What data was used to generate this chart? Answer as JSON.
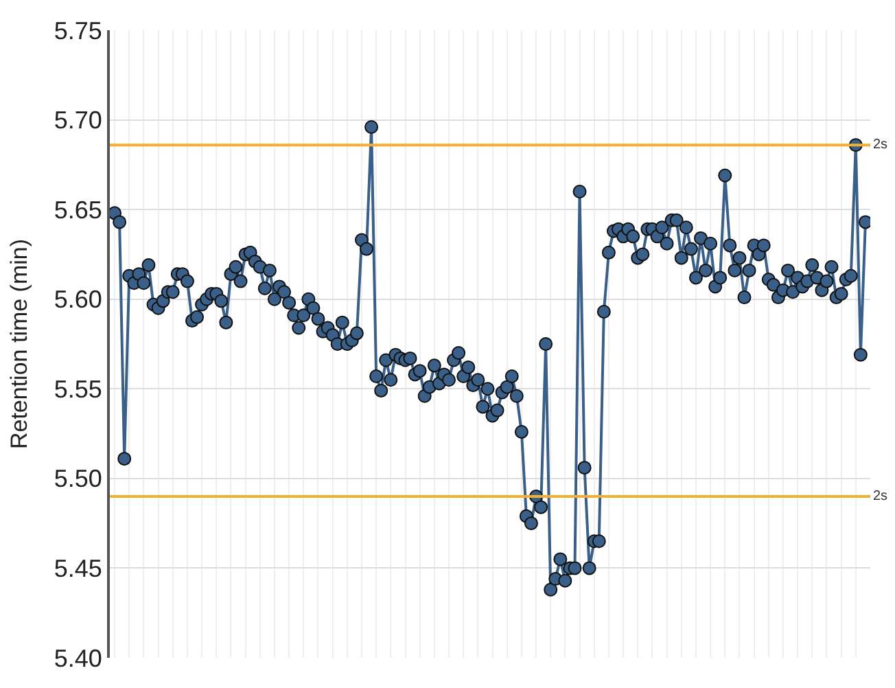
{
  "chart_data": {
    "type": "line",
    "ylabel": "Retention time (min)",
    "categories": [
      null,
      null,
      null,
      null,
      null,
      null,
      null,
      null,
      null,
      null,
      null,
      null,
      null,
      null,
      null,
      null,
      null,
      null,
      null,
      null,
      null,
      null,
      null,
      null,
      null,
      null,
      null,
      null,
      null,
      null,
      null,
      null,
      null,
      null,
      null,
      null,
      null,
      null,
      null,
      null,
      null,
      null,
      null,
      null,
      null,
      null,
      null,
      null,
      null,
      null,
      null,
      null,
      null,
      null,
      null,
      null,
      null,
      null,
      null,
      null,
      null,
      null,
      null,
      null,
      null,
      null,
      null,
      null,
      null,
      null,
      null,
      null,
      null,
      null,
      null,
      null,
      null,
      null,
      null,
      null,
      null,
      null,
      null,
      null,
      null,
      null,
      null,
      null,
      null,
      null,
      null,
      null,
      null,
      null,
      null,
      null,
      null,
      null,
      null,
      null,
      null,
      null,
      null,
      null,
      null,
      null,
      null,
      null,
      null,
      null,
      null,
      null,
      null,
      null,
      null,
      null,
      null,
      null,
      null,
      null,
      null,
      null,
      null,
      null,
      null,
      null,
      null,
      null,
      null,
      null,
      null,
      null,
      null,
      null,
      null,
      null,
      null,
      null,
      null,
      null,
      null,
      null,
      null,
      null,
      null,
      null,
      null,
      null,
      null,
      null,
      null,
      null,
      null,
      null,
      null,
      null
    ],
    "series": [
      {
        "color": "#3a5f88",
        "values": [
          5.648,
          5.643,
          5.511,
          5.613,
          5.609,
          5.614,
          5.609,
          5.619,
          5.597,
          5.595,
          5.599,
          5.604,
          5.604,
          5.614,
          5.614,
          5.61,
          5.588,
          5.59,
          5.597,
          5.6,
          5.603,
          5.603,
          5.599,
          5.587,
          5.614,
          5.618,
          5.61,
          5.625,
          5.626,
          5.621,
          5.618,
          5.606,
          5.616,
          5.6,
          5.607,
          5.604,
          5.598,
          5.591,
          5.584,
          5.591,
          5.6,
          5.595,
          5.589,
          5.582,
          5.584,
          5.58,
          5.575,
          5.587,
          5.575,
          5.577,
          5.581,
          5.633,
          5.628,
          5.696,
          5.557,
          5.549,
          5.566,
          5.555,
          5.569,
          5.567,
          5.566,
          5.567,
          5.558,
          5.56,
          5.546,
          5.551,
          5.563,
          5.553,
          5.558,
          5.555,
          5.566,
          5.57,
          5.557,
          5.562,
          5.552,
          5.555,
          5.54,
          5.55,
          5.535,
          5.538,
          5.548,
          5.551,
          5.557,
          5.546,
          5.526,
          5.479,
          5.475,
          5.49,
          5.484,
          5.575,
          5.438,
          5.444,
          5.455,
          5.443,
          5.45,
          5.45,
          5.66,
          5.506,
          5.45,
          5.465,
          5.465,
          5.593,
          5.626,
          5.638,
          5.639,
          5.635,
          5.639,
          5.635,
          5.623,
          5.625,
          5.639,
          5.639,
          5.635,
          5.64,
          5.631,
          5.644,
          5.644,
          5.623,
          5.64,
          5.628,
          5.612,
          5.634,
          5.616,
          5.631,
          5.607,
          5.612,
          5.669,
          5.63,
          5.616,
          5.623,
          5.601,
          5.616,
          5.63,
          5.625,
          5.63,
          5.611,
          5.608,
          5.601,
          5.605,
          5.616,
          5.604,
          5.612,
          5.607,
          5.61,
          5.619,
          5.612,
          5.605,
          5.61,
          5.618,
          5.601,
          5.603,
          5.611,
          5.613,
          5.686,
          5.569,
          5.643
        ]
      }
    ],
    "ylim": [
      5.4,
      5.75
    ],
    "yticks": [
      {
        "value": 5.4,
        "label": "5.40"
      },
      {
        "value": 5.45,
        "label": "5.45"
      },
      {
        "value": 5.5,
        "label": "5.50"
      },
      {
        "value": 5.55,
        "label": "5.55"
      },
      {
        "value": 5.6,
        "label": "5.60"
      },
      {
        "value": 5.65,
        "label": "5.65"
      },
      {
        "value": 5.7,
        "label": "5.70"
      },
      {
        "value": 5.75,
        "label": "5.75"
      }
    ],
    "ref_lines": [
      {
        "axis": "y",
        "value": 5.686,
        "label": "2s",
        "color": "#f0b030"
      },
      {
        "axis": "y",
        "value": 5.49,
        "label": "2s",
        "color": "#f0b030"
      }
    ],
    "grid": true,
    "marker": "circle",
    "line_style": "solid",
    "tick_labels": "y"
  }
}
